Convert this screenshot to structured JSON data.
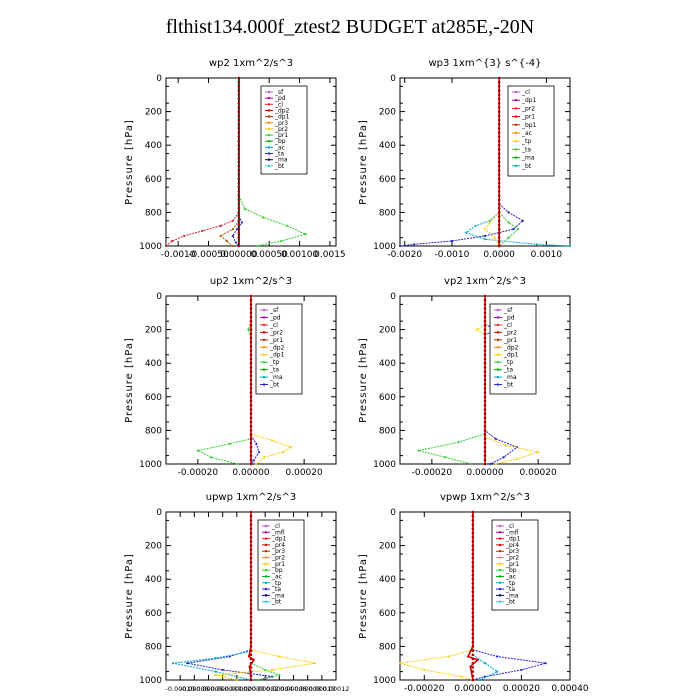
{
  "title": "flthist134.000f_ztest2  BUDGET at285E,-20N",
  "chart_data": [
    {
      "type": "line",
      "title": "wp2   1xm^2/s^3",
      "ylabel": "Pressure [hPa]",
      "ylim": [
        1000,
        0
      ],
      "yticks": [
        "0",
        "200",
        "400",
        "600",
        "800",
        "1000"
      ],
      "xlim": [
        -0.0012,
        0.0016
      ],
      "xticks": [
        {
          "v": -0.001,
          "label": "-0.0010"
        },
        {
          "v": -0.0005,
          "label": "-0.00050"
        },
        {
          "v": 0.0,
          "label": "0.00000"
        },
        {
          "v": 0.0005,
          "label": "0.00050"
        },
        {
          "v": 0.001,
          "label": "0.00100"
        },
        {
          "v": 0.0015,
          "label": "0.0015"
        }
      ],
      "legend": [
        "_sf",
        "_pd",
        "_cl",
        "_dp2",
        "_dp1",
        "_pr3",
        "_pr2",
        "_pr1",
        "_bp",
        "_ac",
        "_ta",
        "_ma",
        "_bt"
      ],
      "series": [
        {
          "name": "_pr1",
          "color": "#33cc33",
          "p": [
            700,
            780,
            830,
            880,
            930,
            970,
            1000
          ],
          "x": [
            0,
            0.0001,
            0.0004,
            0.0008,
            0.0011,
            0.0007,
            0.0003
          ]
        },
        {
          "name": "_pd",
          "color": "#cc2222",
          "p": [
            800,
            850,
            880,
            910,
            940,
            970,
            1000
          ],
          "x": [
            0,
            -0.0001,
            -0.0003,
            -0.0006,
            -0.0009,
            -0.0011,
            -0.0012
          ]
        },
        {
          "name": "_dp1",
          "color": "#aa5500",
          "p": [
            850,
            900,
            940,
            970,
            1000
          ],
          "x": [
            0,
            -0.0001,
            -0.0003,
            -0.0002,
            -0.0001
          ]
        },
        {
          "name": "_bp",
          "color": "#2222cc",
          "p": [
            820,
            860,
            900,
            940,
            980,
            1000
          ],
          "x": [
            0,
            5e-05,
            -3e-05,
            -0.0001,
            -5e-05,
            0
          ]
        },
        {
          "name": "_bt",
          "color": "#000000",
          "p": [
            0,
            200,
            400,
            600,
            800,
            1000
          ],
          "x": [
            0,
            0,
            0,
            0,
            0,
            0
          ]
        }
      ]
    },
    {
      "type": "line",
      "title": "wp3   1xm^{3} s^{-4}",
      "ylabel": "Pressure [hPa]",
      "ylim": [
        1000,
        0
      ],
      "yticks": [
        "0",
        "200",
        "400",
        "600",
        "800",
        "1000"
      ],
      "xlim": [
        -0.0021,
        0.0015
      ],
      "xticks": [
        {
          "v": -0.002,
          "label": "-0.0020"
        },
        {
          "v": -0.001,
          "label": "-0.0010"
        },
        {
          "v": 0.0,
          "label": "0.0000"
        },
        {
          "v": 0.001,
          "label": "0.0010"
        }
      ],
      "legend": [
        "_cl",
        "_dp1",
        "_pr2",
        "_pr1",
        "_bp1",
        "_ac",
        "_tp",
        "_ta",
        "_ma",
        "_bt"
      ],
      "series": [
        {
          "name": "_tp",
          "color": "#2222cc",
          "p": [
            750,
            800,
            850,
            900,
            940,
            970,
            990,
            1000
          ],
          "x": [
            0,
            0.0002,
            0.0005,
            0.0003,
            -0.0003,
            -0.001,
            -0.0018,
            -0.0021
          ]
        },
        {
          "name": "_ac",
          "color": "#00aacc",
          "p": [
            800,
            850,
            880,
            920,
            960,
            990,
            1000
          ],
          "x": [
            0,
            -0.0002,
            -0.0005,
            -0.0007,
            -0.0003,
            0.0008,
            0.0015
          ]
        },
        {
          "name": "_pr1",
          "color": "#33cc33",
          "p": [
            800,
            860,
            900,
            950,
            1000
          ],
          "x": [
            0,
            0.0002,
            0.0004,
            0.0002,
            0
          ]
        },
        {
          "name": "_pr2",
          "color": "#ffcc00",
          "p": [
            800,
            860,
            900,
            950,
            1000
          ],
          "x": [
            0,
            -0.0002,
            -0.0003,
            -0.0001,
            0
          ]
        },
        {
          "name": "_cl",
          "color": "#cc0000",
          "p": [
            0,
            200,
            400,
            600,
            800,
            1000
          ],
          "x": [
            0,
            0,
            0,
            0,
            0,
            0
          ]
        }
      ]
    },
    {
      "type": "line",
      "title": "up2   1xm^2/s^3",
      "ylabel": "Pressure [hPa]",
      "ylim": [
        1000,
        0
      ],
      "yticks": [
        "0",
        "200",
        "400",
        "600",
        "800",
        "1000"
      ],
      "xlim": [
        -0.00032,
        0.00032
      ],
      "xticks": [
        {
          "v": -0.0002,
          "label": "-0.00020"
        },
        {
          "v": 0.0,
          "label": "0.00000"
        },
        {
          "v": 0.0002,
          "label": "0.00020"
        }
      ],
      "legend": [
        "_sf",
        "_pd",
        "_cl",
        "_pr2",
        "_pr1",
        "_dp2",
        "_dp1",
        "_tp",
        "_ta",
        "_ma",
        "_bt"
      ],
      "series": [
        {
          "name": "_pr1",
          "color": "#33cc33",
          "p": [
            150,
            200,
            250,
            850,
            880,
            920,
            960,
            1000
          ],
          "x": [
            0,
            -1e-05,
            0,
            0,
            -8e-05,
            -0.0002,
            -0.00015,
            -5e-05
          ]
        },
        {
          "name": "_pr2",
          "color": "#ffcc00",
          "p": [
            820,
            860,
            900,
            930,
            960,
            1000
          ],
          "x": [
            0,
            8e-05,
            0.00015,
            0.00012,
            5e-05,
            2e-05
          ]
        },
        {
          "name": "_tp",
          "color": "#2222cc",
          "p": [
            830,
            880,
            930,
            980,
            1000
          ],
          "x": [
            0,
            2e-05,
            3e-05,
            1e-05,
            0
          ]
        },
        {
          "name": "_cl",
          "color": "#cc0000",
          "p": [
            0,
            200,
            400,
            600,
            800,
            1000
          ],
          "x": [
            0,
            0,
            0,
            0,
            0,
            0
          ]
        }
      ]
    },
    {
      "type": "line",
      "title": "vp2   1xm^2/s^3",
      "ylabel": "Pressure [hPa]",
      "ylim": [
        1000,
        0
      ],
      "yticks": [
        "0",
        "200",
        "400",
        "600",
        "800",
        "1000"
      ],
      "xlim": [
        -0.00032,
        0.00032
      ],
      "xticks": [
        {
          "v": -0.0002,
          "label": "-0.00020"
        },
        {
          "v": 0.0,
          "label": "0.00000"
        },
        {
          "v": 0.0002,
          "label": "0.00020"
        }
      ],
      "legend": [
        "_sf",
        "_pd",
        "_cl",
        "_pr2",
        "_pr1",
        "_dp2",
        "_dp1",
        "_tp",
        "_ta",
        "_ma",
        "_bt"
      ],
      "series": [
        {
          "name": "_tp",
          "color": "#2222cc",
          "p": [
            170,
            200,
            230,
            800,
            850,
            900,
            960,
            1000
          ],
          "x": [
            0,
            5e-05,
            0,
            0,
            4e-05,
            0.00012,
            7e-05,
            2e-05
          ]
        },
        {
          "name": "_pr1",
          "color": "#33cc33",
          "p": [
            820,
            870,
            920,
            960,
            1000
          ],
          "x": [
            0,
            -0.0001,
            -0.00025,
            -0.00015,
            -5e-05
          ]
        },
        {
          "name": "_pr2",
          "color": "#ffcc00",
          "p": [
            170,
            200,
            230,
            840,
            890,
            930,
            970,
            1000
          ],
          "x": [
            0,
            -3e-05,
            0,
            0,
            8e-05,
            0.0002,
            0.00012,
            4e-05
          ]
        },
        {
          "name": "_cl",
          "color": "#cc0000",
          "p": [
            0,
            200,
            400,
            600,
            800,
            1000
          ],
          "x": [
            0,
            0,
            0,
            0,
            0,
            0
          ]
        }
      ]
    },
    {
      "type": "line",
      "title": "upwp   1xm^2/s^3",
      "ylabel": "Pressure [hPa]",
      "ylim": [
        1000,
        0
      ],
      "yticks": [
        "0",
        "200",
        "400",
        "600",
        "800",
        "1000"
      ],
      "xlim": [
        -0.00012,
        0.00012
      ],
      "xticks": [
        {
          "v": -0.0001,
          "label": "-0.00010"
        },
        {
          "v": -8e-05,
          "label": "-0.00008"
        },
        {
          "v": -6e-05,
          "label": "-0.00006"
        },
        {
          "v": -4e-05,
          "label": "-0.00004"
        },
        {
          "v": -2e-05,
          "label": "-0.00002"
        },
        {
          "v": 0.0,
          "label": "0.00000"
        },
        {
          "v": 2e-05,
          "label": "0.00002"
        },
        {
          "v": 4e-05,
          "label": "0.00004"
        },
        {
          "v": 6e-05,
          "label": "0.00006"
        },
        {
          "v": 8e-05,
          "label": "0.00008"
        },
        {
          "v": 0.0001,
          "label": "0.00010"
        },
        {
          "v": 0.00012,
          "label": "0.00012"
        }
      ],
      "legend": [
        "_cl",
        "_mfl",
        "_dp1",
        "_pr4",
        "_pr3",
        "_pr2",
        "_pr1",
        "_bp",
        "_ac",
        "_tp",
        "_ta",
        "_ma",
        "_bt"
      ],
      "series": [
        {
          "name": "_tp",
          "color": "#2222cc",
          "p": [
            820,
            860,
            900,
            940,
            980,
            1000
          ],
          "x": [
            0,
            -3e-05,
            -9e-05,
            -4e-05,
            3e-05,
            1e-05
          ]
        },
        {
          "name": "_ac",
          "color": "#00aacc",
          "p": [
            830,
            870,
            900,
            950,
            1000
          ],
          "x": [
            0,
            -5e-05,
            -0.00011,
            -5e-05,
            0
          ]
        },
        {
          "name": "_pr2",
          "color": "#ffcc00",
          "p": [
            820,
            860,
            900,
            940,
            970,
            1000
          ],
          "x": [
            0,
            4e-05,
            9e-05,
            3e-05,
            -5e-05,
            -2e-05
          ]
        },
        {
          "name": "_pr1",
          "color": "#33cc33",
          "p": [
            900,
            940,
            970,
            1000
          ],
          "x": [
            0,
            2e-05,
            4e-05,
            1e-05
          ]
        },
        {
          "name": "_cl",
          "color": "#cc0000",
          "p": [
            0,
            200,
            400,
            600,
            800,
            860,
            880,
            920,
            1000
          ],
          "x": [
            0,
            0,
            0,
            0,
            0,
            -3e-06,
            4e-06,
            -2e-06,
            0
          ]
        }
      ]
    },
    {
      "type": "line",
      "title": "vpwp   1xm^2/s^3",
      "ylabel": "Pressure [hPa]",
      "ylim": [
        1000,
        0
      ],
      "yticks": [
        "0",
        "200",
        "400",
        "600",
        "800",
        "1000"
      ],
      "xlim": [
        -0.0003,
        0.0004
      ],
      "xticks": [
        {
          "v": -0.0002,
          "label": "-0.00020"
        },
        {
          "v": 0.0,
          "label": "0.00000"
        },
        {
          "v": 0.0002,
          "label": "0.00020"
        },
        {
          "v": 0.0004,
          "label": "0.00040"
        }
      ],
      "legend": [
        "_cl",
        "_mfl",
        "_dp1",
        "_pr4",
        "_pr3",
        "_pr2",
        "_pr1",
        "_bp",
        "_ac",
        "_tp",
        "_ta",
        "_ma",
        "_bt"
      ],
      "series": [
        {
          "name": "_tp",
          "color": "#2222cc",
          "p": [
            820,
            860,
            900,
            940,
            980,
            1000
          ],
          "x": [
            0,
            0.0001,
            0.0003,
            0.0002,
            5e-05,
            0
          ]
        },
        {
          "name": "_pr2",
          "color": "#ffcc00",
          "p": [
            820,
            860,
            900,
            940,
            980,
            1000
          ],
          "x": [
            0,
            -0.0001,
            -0.0003,
            -0.0002,
            -5e-05,
            0
          ]
        },
        {
          "name": "_ac",
          "color": "#00aacc",
          "p": [
            850,
            900,
            950,
            1000
          ],
          "x": [
            0,
            5e-05,
            0.0001,
            3e-05
          ]
        },
        {
          "name": "_cl",
          "color": "#cc0000",
          "p": [
            0,
            200,
            400,
            600,
            800,
            860,
            880,
            920,
            1000
          ],
          "x": [
            0,
            0,
            0,
            0,
            0,
            -2e-05,
            2e-05,
            -1e-05,
            0
          ]
        }
      ]
    }
  ],
  "legend_colors": [
    "#cc55cc",
    "#aa00aa",
    "#dd2222",
    "#cc0000",
    "#aa3300",
    "#ff8800",
    "#ffcc00",
    "#33cc33",
    "#00aa00",
    "#00aacc",
    "#2222cc",
    "#000077",
    "#33cccc"
  ]
}
